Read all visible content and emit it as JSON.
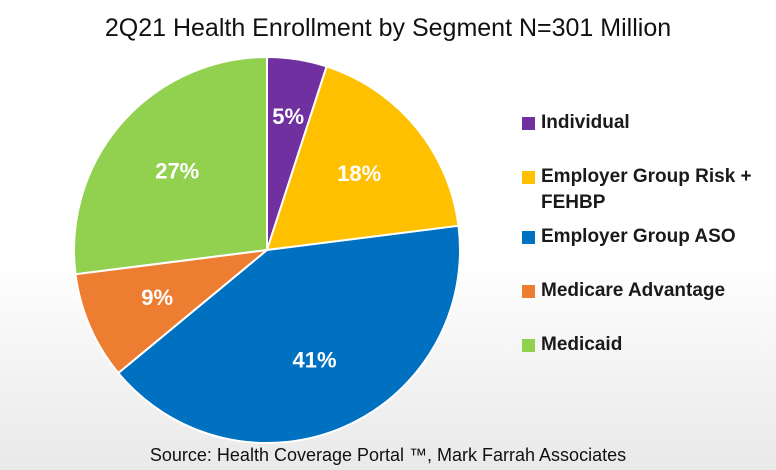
{
  "chart_data": {
    "type": "pie",
    "title": "2Q21 Health Enrollment by Segment N=301 Million",
    "slices": [
      {
        "label": "Individual",
        "value": 5,
        "value_label": "5%",
        "color": "#7030A0"
      },
      {
        "label": "Employer Group Risk + FEHBP",
        "value": 18,
        "value_label": "18%",
        "color": "#FFC000"
      },
      {
        "label": "Employer Group ASO",
        "value": 41,
        "value_label": "41%",
        "color": "#0070C0"
      },
      {
        "label": "Medicare Advantage",
        "value": 9,
        "value_label": "9%",
        "color": "#ED7D31"
      },
      {
        "label": "Medicaid",
        "value": 27,
        "value_label": "27%",
        "color": "#92D050"
      }
    ],
    "legend_position": "right",
    "source": "Source: Health Coverage Portal ™, Mark Farrah Associates"
  }
}
